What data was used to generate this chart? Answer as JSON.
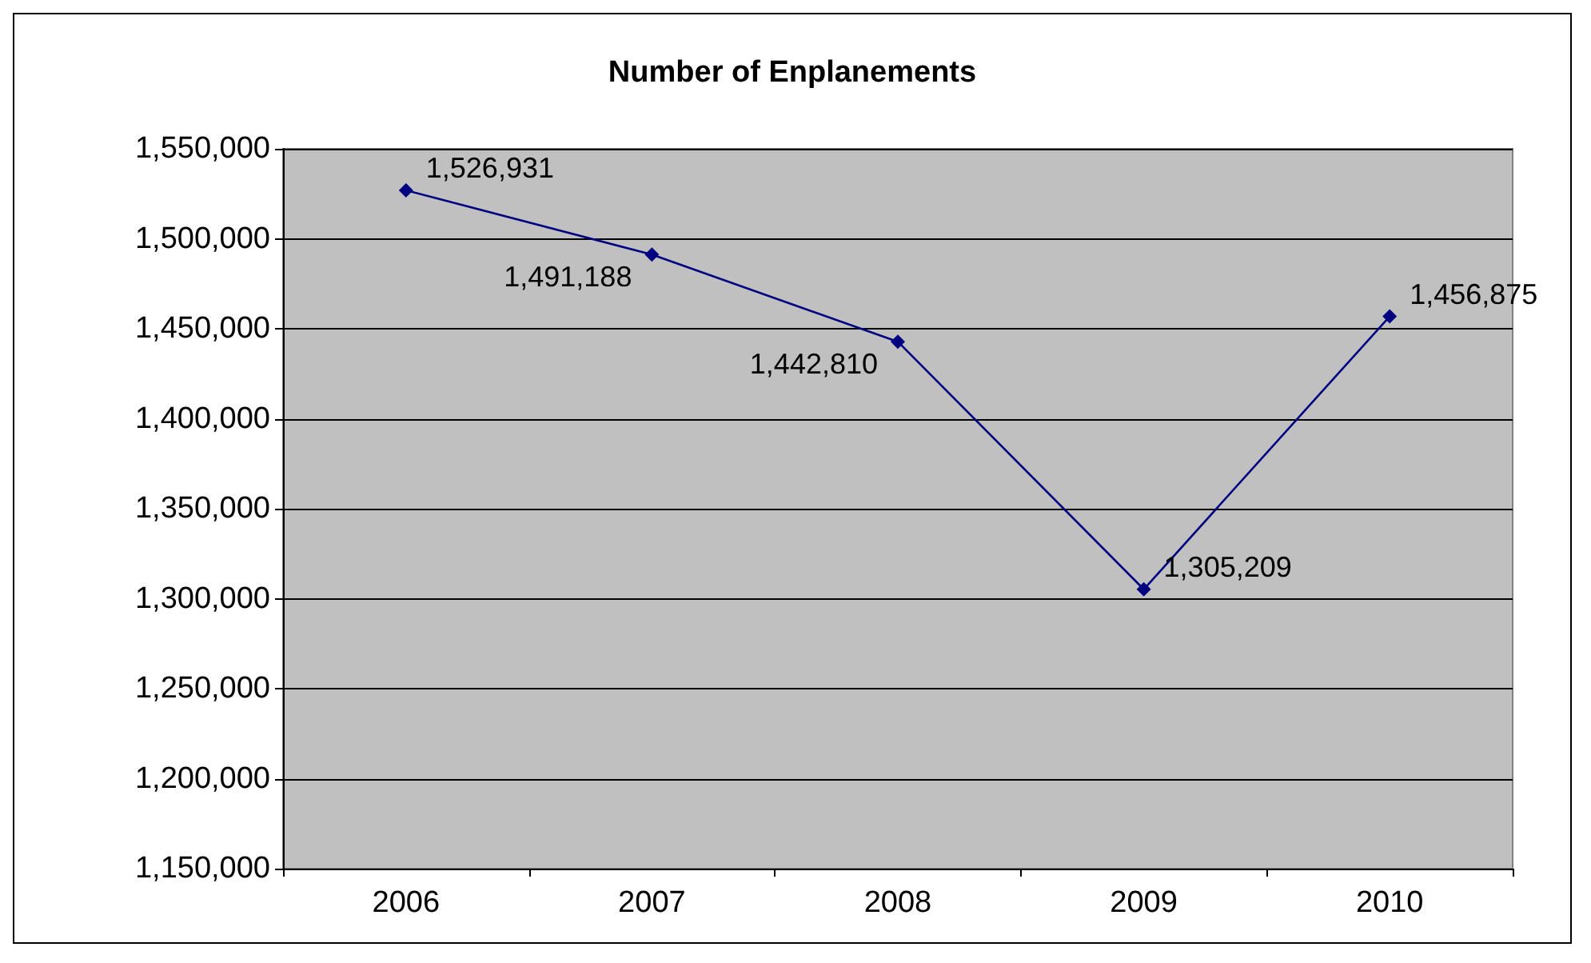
{
  "chart_data": {
    "type": "line",
    "title": "Number of Enplanements",
    "categories": [
      "2006",
      "2007",
      "2008",
      "2009",
      "2010"
    ],
    "series": [
      {
        "color": "#000080",
        "values": [
          1526931,
          1491188,
          1442810,
          1305209,
          1456875
        ],
        "value_labels": [
          "1,526,931",
          "1,491,188",
          "1,442,810",
          "1,305,209",
          "1,456,875"
        ]
      }
    ],
    "ylim": [
      1150000,
      1550000
    ],
    "yticks": [
      {
        "value": 1150000,
        "label": "1,150,000"
      },
      {
        "value": 1200000,
        "label": "1,200,000"
      },
      {
        "value": 1250000,
        "label": "1,250,000"
      },
      {
        "value": 1300000,
        "label": "1,300,000"
      },
      {
        "value": 1350000,
        "label": "1,350,000"
      },
      {
        "value": 1400000,
        "label": "1,400,000"
      },
      {
        "value": 1450000,
        "label": "1,450,000"
      },
      {
        "value": 1500000,
        "label": "1,500,000"
      },
      {
        "value": 1550000,
        "label": "1,550,000"
      }
    ],
    "grid": "y",
    "marker": "diamond",
    "line_style": "solid"
  }
}
